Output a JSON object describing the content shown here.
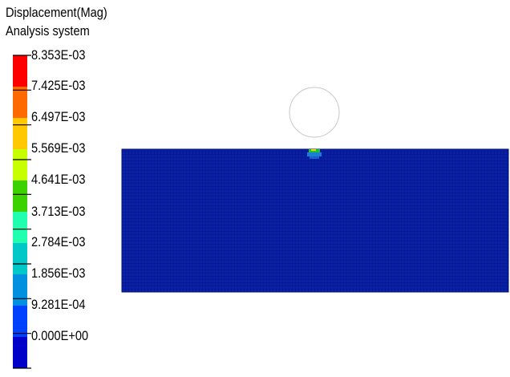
{
  "legend": {
    "title_line1": "Displacement(Mag)",
    "title_line2": "Analysis system",
    "ticks": [
      "8.353E-03",
      "7.425E-03",
      "6.497E-03",
      "5.569E-03",
      "4.641E-03",
      "3.713E-03",
      "2.784E-03",
      "1.856E-03",
      "9.281E-04",
      "0.000E+00"
    ],
    "band_colors_top_to_bottom": [
      "#ff0000",
      "#ff6a00",
      "#ffc800",
      "#c8ff00",
      "#3cd200",
      "#20ffb0",
      "#00c8c8",
      "#0090e0",
      "#0040ff",
      "#0000c8"
    ],
    "tick_line_color": "#000000"
  },
  "model": {
    "mesh_fill_color": "#0a20a8",
    "mesh_line_color": "#001070",
    "contact_zone_colors": [
      "#22c03a",
      "#e0e000",
      "#1a7fd0"
    ],
    "indenter_outline_color": "#c8c8c8"
  }
}
